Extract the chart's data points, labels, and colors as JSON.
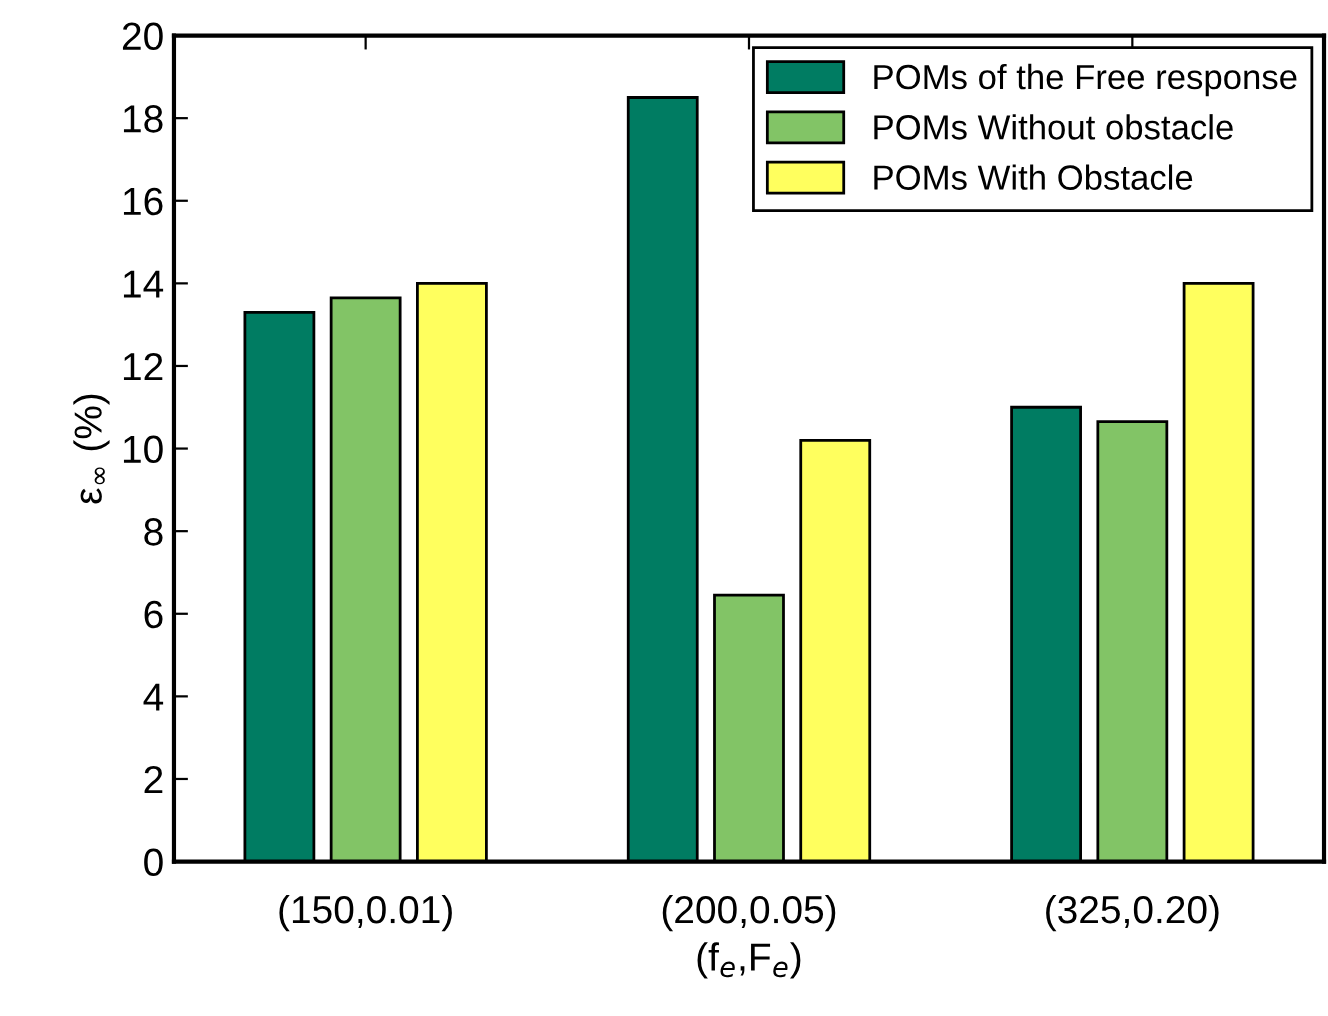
{
  "chart_data": {
    "type": "bar",
    "xlabel": "(f$_{e}$,F$_{e}$)",
    "ylabel": "ε$_{∞}$ (%)",
    "categories": [
      "(150,0.01)",
      "(200,0.05)",
      "(325,0.20)"
    ],
    "series": [
      {
        "name": "POMs of the Free response",
        "color": "#007c62",
        "values": [
          13.3,
          18.5,
          11.0
        ]
      },
      {
        "name": "POMs Without obstacle",
        "color": "#82c466",
        "values": [
          13.65,
          6.45,
          10.65
        ]
      },
      {
        "name": "POMs With Obstacle",
        "color": "#ffff5e",
        "values": [
          14.0,
          10.2,
          14.0
        ]
      }
    ],
    "ylim": [
      0,
      20
    ],
    "yticks": [
      0,
      2,
      4,
      6,
      8,
      10,
      12,
      14,
      16,
      18,
      20
    ],
    "grid": false,
    "legend": "top right"
  }
}
